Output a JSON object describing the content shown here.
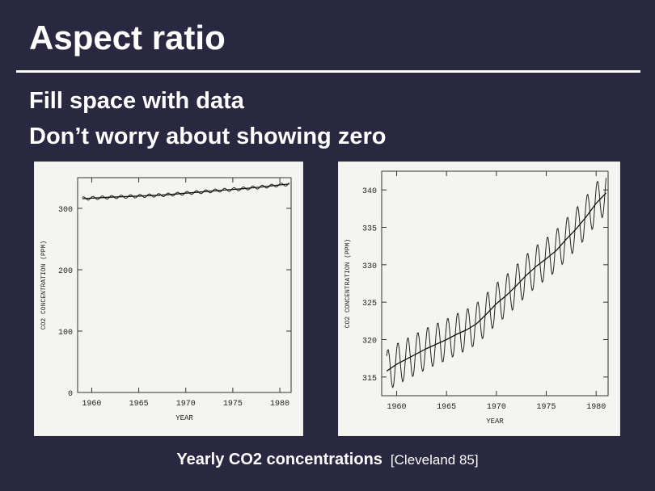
{
  "slide": {
    "title": "Aspect ratio",
    "bullets": [
      "Fill space with data",
      "Don’t worry about showing zero"
    ],
    "caption_main": "Yearly CO2 concentrations",
    "caption_cite": "[Cleveland 85]"
  },
  "chart_data": [
    {
      "type": "line",
      "title": "",
      "xlabel": "YEAR",
      "ylabel": "CO2 CONCENTRATION (PPM)",
      "xlim": [
        1958.5,
        1981.2
      ],
      "ylim": [
        0,
        350
      ],
      "xticks": [
        1960,
        1965,
        1970,
        1975,
        1980
      ],
      "yticks": [
        0,
        100,
        200,
        300
      ],
      "series": [
        {
          "kind": "monthly-oscillating",
          "x": [
            1959,
            1960,
            1961,
            1962,
            1963,
            1964,
            1965,
            1966,
            1967,
            1968,
            1969,
            1970,
            1971,
            1972,
            1973,
            1974,
            1975,
            1976,
            1977,
            1978,
            1979,
            1980,
            1981
          ],
          "values": [
            315.8,
            316.7,
            317.4,
            318.1,
            318.8,
            319.4,
            320.0,
            320.7,
            321.3,
            322.1,
            323.4,
            324.8,
            325.9,
            327.2,
            328.6,
            329.8,
            330.8,
            331.9,
            333.4,
            334.8,
            336.4,
            338.2,
            339.6
          ],
          "amplitude": 2.8
        },
        {
          "kind": "trend",
          "x": [
            1959,
            1960,
            1961,
            1962,
            1963,
            1964,
            1965,
            1966,
            1967,
            1968,
            1969,
            1970,
            1971,
            1972,
            1973,
            1974,
            1975,
            1976,
            1977,
            1978,
            1979,
            1980,
            1981
          ],
          "values": [
            315.8,
            316.7,
            317.4,
            318.1,
            318.8,
            319.4,
            320.0,
            320.7,
            321.3,
            322.1,
            323.4,
            324.8,
            325.9,
            327.2,
            328.6,
            329.8,
            330.8,
            331.9,
            333.4,
            334.8,
            336.4,
            338.2,
            339.6
          ]
        }
      ]
    },
    {
      "type": "line",
      "title": "",
      "xlabel": "YEAR",
      "ylabel": "CO2 CONCENTRATION (PPM)",
      "xlim": [
        1958.5,
        1981.2
      ],
      "ylim": [
        312.5,
        342.5
      ],
      "xticks": [
        1960,
        1965,
        1970,
        1975,
        1980
      ],
      "yticks": [
        315,
        320,
        325,
        330,
        335,
        340
      ],
      "series": [
        {
          "kind": "monthly-oscillating",
          "x": [
            1959,
            1960,
            1961,
            1962,
            1963,
            1964,
            1965,
            1966,
            1967,
            1968,
            1969,
            1970,
            1971,
            1972,
            1973,
            1974,
            1975,
            1976,
            1977,
            1978,
            1979,
            1980,
            1981
          ],
          "values": [
            315.8,
            316.7,
            317.4,
            318.1,
            318.8,
            319.4,
            320.0,
            320.7,
            321.3,
            322.1,
            323.4,
            324.8,
            325.9,
            327.2,
            328.6,
            329.8,
            330.8,
            331.9,
            333.4,
            334.8,
            336.4,
            338.2,
            339.6
          ],
          "amplitude": 2.8
        },
        {
          "kind": "trend",
          "x": [
            1959,
            1960,
            1961,
            1962,
            1963,
            1964,
            1965,
            1966,
            1967,
            1968,
            1969,
            1970,
            1971,
            1972,
            1973,
            1974,
            1975,
            1976,
            1977,
            1978,
            1979,
            1980,
            1981
          ],
          "values": [
            315.8,
            316.7,
            317.4,
            318.1,
            318.8,
            319.4,
            320.0,
            320.7,
            321.3,
            322.1,
            323.4,
            324.8,
            325.9,
            327.2,
            328.6,
            329.8,
            330.8,
            331.9,
            333.4,
            334.8,
            336.4,
            338.2,
            339.6
          ]
        }
      ]
    }
  ]
}
